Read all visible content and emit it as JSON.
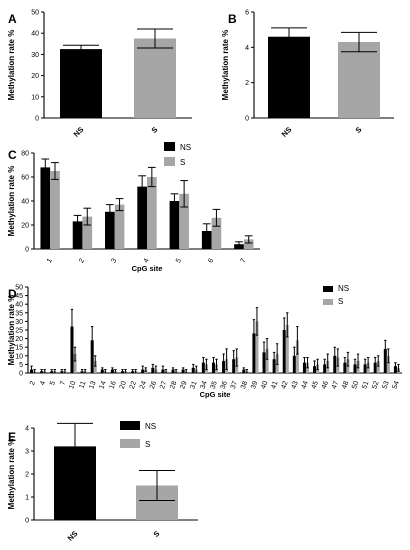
{
  "figure": {
    "colors": {
      "NS": "#000000",
      "S": "#a6a6a6",
      "axis": "#000000"
    }
  },
  "chart_data": [
    {
      "panel": "A",
      "type": "bar",
      "categories": [
        "NS",
        "S"
      ],
      "values": [
        32.5,
        37.5
      ],
      "errors": [
        1.8,
        4.5
      ],
      "ylabel": "Methylation rate %",
      "ylim": [
        0,
        50
      ],
      "yticks": [
        0,
        10,
        20,
        30,
        40,
        50
      ],
      "grid": false
    },
    {
      "panel": "B",
      "type": "bar",
      "categories": [
        "NS",
        "S"
      ],
      "values": [
        4.6,
        4.3
      ],
      "errors": [
        0.5,
        0.55
      ],
      "ylabel": "Methylation rate %",
      "ylim": [
        0,
        6
      ],
      "yticks": [
        0,
        2,
        4,
        6
      ],
      "grid": false
    },
    {
      "panel": "C",
      "type": "bar",
      "categories": [
        "1",
        "2",
        "3",
        "4",
        "5",
        "6",
        "7"
      ],
      "series": [
        {
          "name": "NS",
          "values": [
            68,
            23,
            31,
            52,
            40,
            15,
            4
          ],
          "errors": [
            7,
            5,
            6,
            9,
            6,
            6,
            2
          ]
        },
        {
          "name": "S",
          "values": [
            65,
            27,
            37,
            60,
            46,
            26,
            8
          ],
          "errors": [
            7,
            7,
            5,
            8,
            11,
            7,
            3
          ]
        }
      ],
      "xlabel": "CpG site",
      "ylabel": "Methylation rate %",
      "ylim": [
        0,
        80
      ],
      "yticks": [
        0,
        20,
        40,
        60,
        80
      ],
      "legend": "top-right",
      "grid": false
    },
    {
      "panel": "D",
      "type": "bar",
      "categories": [
        "2",
        "4",
        "5",
        "7",
        "10",
        "11",
        "13",
        "14",
        "16",
        "20",
        "22",
        "24",
        "26",
        "27",
        "28",
        "29",
        "31",
        "34",
        "35",
        "36",
        "37",
        "38",
        "39",
        "40",
        "41",
        "42",
        "43",
        "44",
        "45",
        "46",
        "47",
        "48",
        "50",
        "51",
        "52",
        "53",
        "54"
      ],
      "series": [
        {
          "name": "NS",
          "values": [
            2,
            1,
            1,
            1,
            27,
            1,
            19,
            2,
            2,
            1,
            1,
            2,
            3,
            2,
            2,
            2,
            3,
            6,
            6,
            7,
            8,
            2,
            23,
            12,
            8,
            25,
            10,
            6,
            4,
            5,
            10,
            6,
            5,
            5,
            6,
            14,
            4
          ],
          "errors": [
            2,
            1,
            1,
            1,
            10,
            1,
            8,
            1,
            1,
            1,
            1,
            2,
            2,
            2,
            1,
            1,
            2,
            3,
            3,
            4,
            5,
            1,
            8,
            6,
            4,
            7,
            5,
            3,
            3,
            3,
            5,
            3,
            3,
            3,
            3,
            5,
            2
          ]
        },
        {
          "name": "S",
          "values": [
            1,
            1,
            1,
            1,
            11,
            1,
            7,
            1,
            1,
            1,
            1,
            2,
            2,
            1,
            1,
            1,
            2,
            5,
            5,
            8,
            9,
            1,
            30,
            14,
            11,
            28,
            19,
            6,
            5,
            7,
            9,
            8,
            7,
            6,
            7,
            10,
            3
          ],
          "errors": [
            1,
            1,
            1,
            1,
            4,
            1,
            3,
            1,
            1,
            1,
            1,
            1,
            2,
            1,
            1,
            1,
            2,
            3,
            3,
            6,
            5,
            1,
            8,
            6,
            6,
            7,
            8,
            3,
            3,
            4,
            5,
            4,
            4,
            3,
            3,
            4,
            2
          ]
        }
      ],
      "xlabel": "CpG site",
      "ylabel": "Methylation rate %",
      "ylim": [
        0,
        50
      ],
      "yticks": [
        0,
        5,
        10,
        15,
        20,
        25,
        30,
        35,
        40,
        45,
        50
      ],
      "legend": "top-right",
      "grid": false
    },
    {
      "panel": "E",
      "type": "bar",
      "categories": [
        "NS",
        "S"
      ],
      "values": [
        3.2,
        1.5
      ],
      "errors": [
        1.0,
        0.65
      ],
      "ylabel": "Methylation rate %",
      "ylim": [
        0,
        4
      ],
      "yticks": [
        0,
        1,
        2,
        3,
        4
      ],
      "legend": "top-right",
      "legend_labels": [
        "NS",
        "S"
      ],
      "grid": false
    }
  ]
}
